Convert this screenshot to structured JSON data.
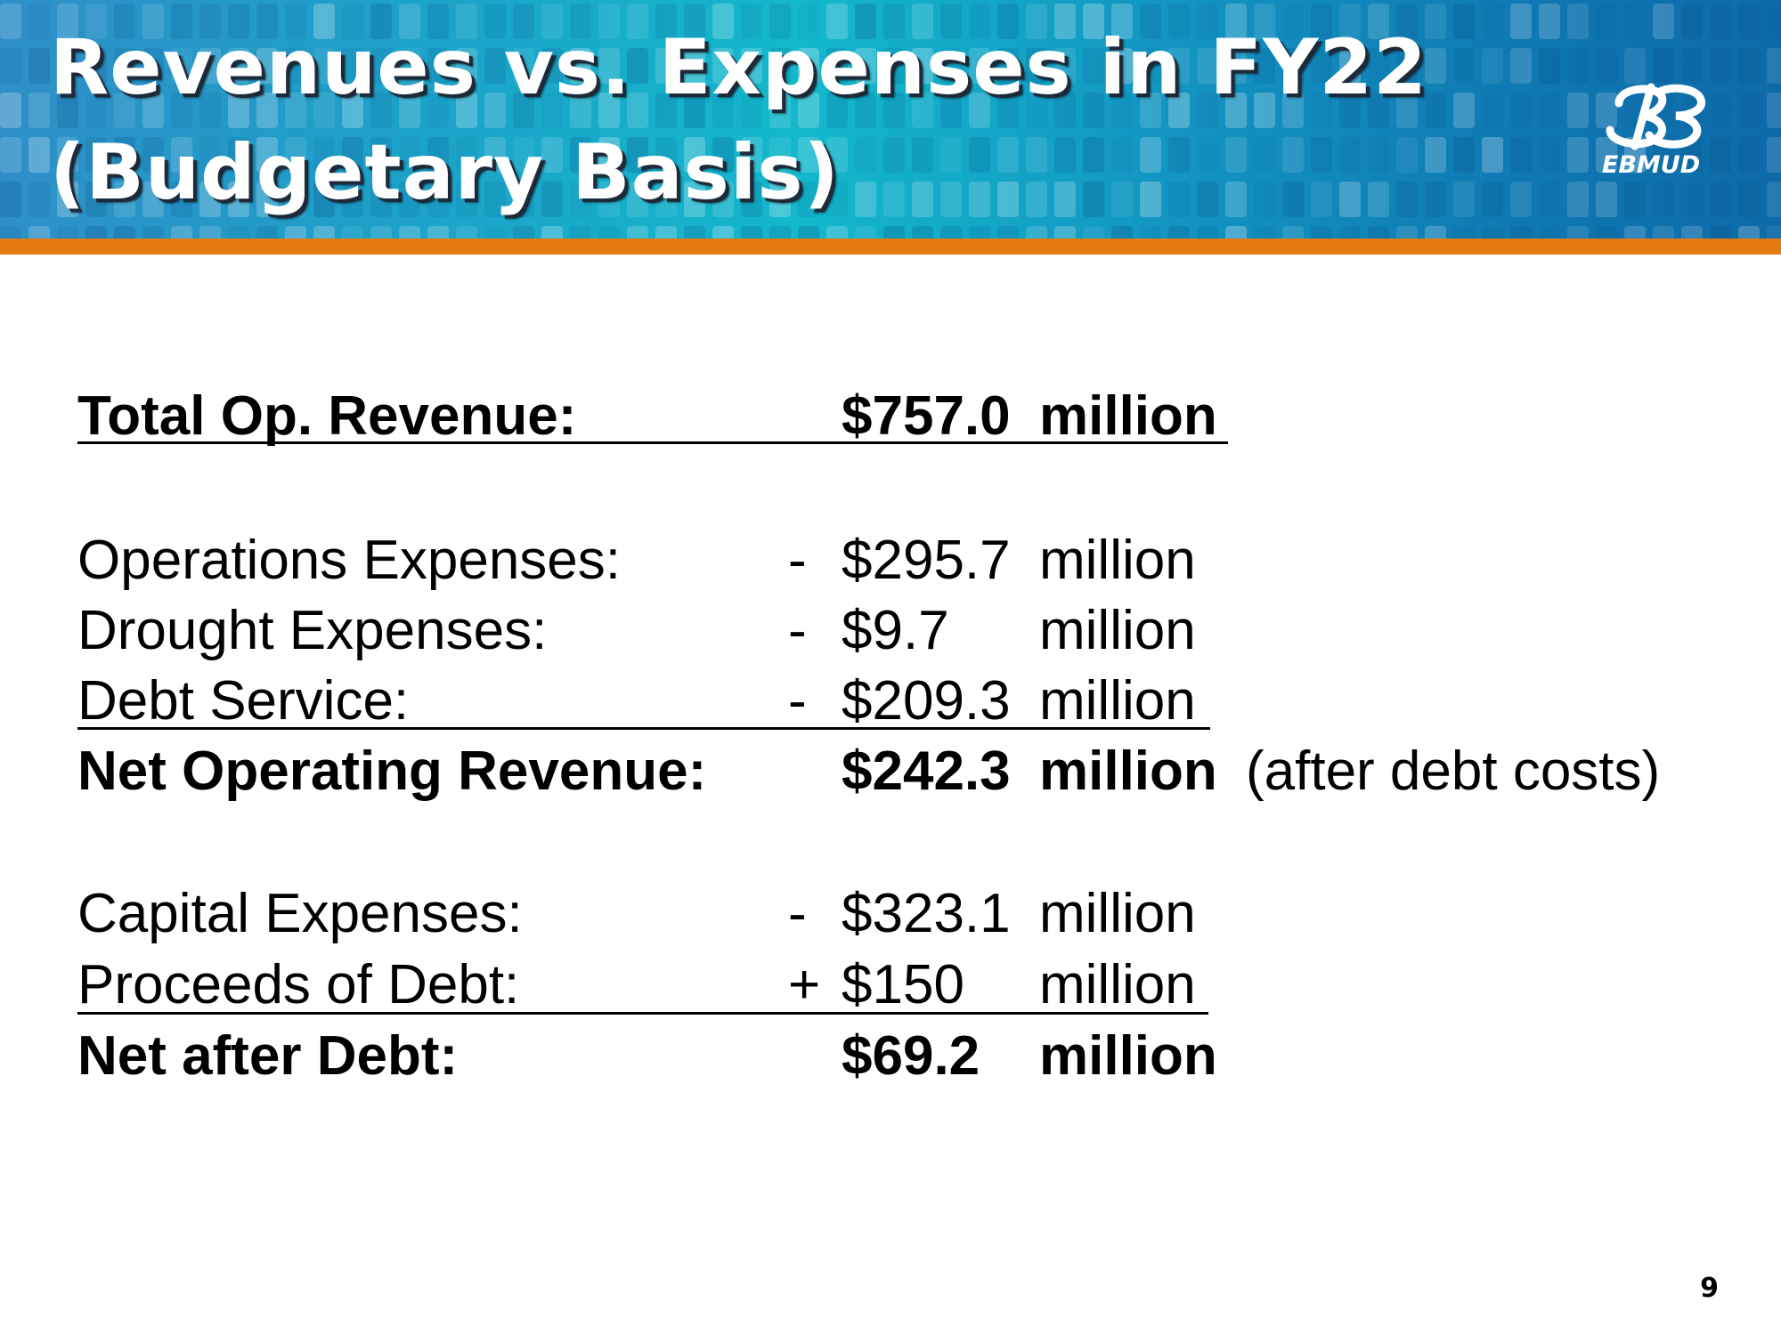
{
  "slide": {
    "title_line_1": "Revenues vs. Expenses in FY22",
    "title_line_2": "(Budgetary Basis)",
    "logo_text": "EBMUD",
    "page_number": "9"
  },
  "rows": [
    {
      "label": "Total Op. Revenue:",
      "sign": "",
      "amount": "$757.0",
      "unit": "million",
      "note": ""
    },
    {
      "label": "Operations Expenses:",
      "sign": "-",
      "amount": "$295.7",
      "unit": "million",
      "note": ""
    },
    {
      "label": "Drought Expenses:",
      "sign": "-",
      "amount": "$9.7",
      "unit": "million",
      "note": ""
    },
    {
      "label": "Debt Service:",
      "sign": "-",
      "amount": "$209.3",
      "unit": "million",
      "note": ""
    },
    {
      "label": "Net Operating Revenue:",
      "sign": "",
      "amount": "$242.3",
      "unit": "million",
      "note": "(after debt costs)"
    },
    {
      "label": "Capital Expenses:",
      "sign": "-",
      "amount": "$323.1",
      "unit": "million",
      "note": ""
    },
    {
      "label": "Proceeds of Debt:",
      "sign": "+",
      "amount": "$150",
      "unit": "million",
      "note": ""
    },
    {
      "label": "Net after Debt:",
      "sign": "",
      "amount": "$69.2",
      "unit": "million",
      "note": ""
    }
  ],
  "colors": {
    "accent_stripe": "#e57a13",
    "header_blue": "#1396c2",
    "text": "#000000"
  }
}
